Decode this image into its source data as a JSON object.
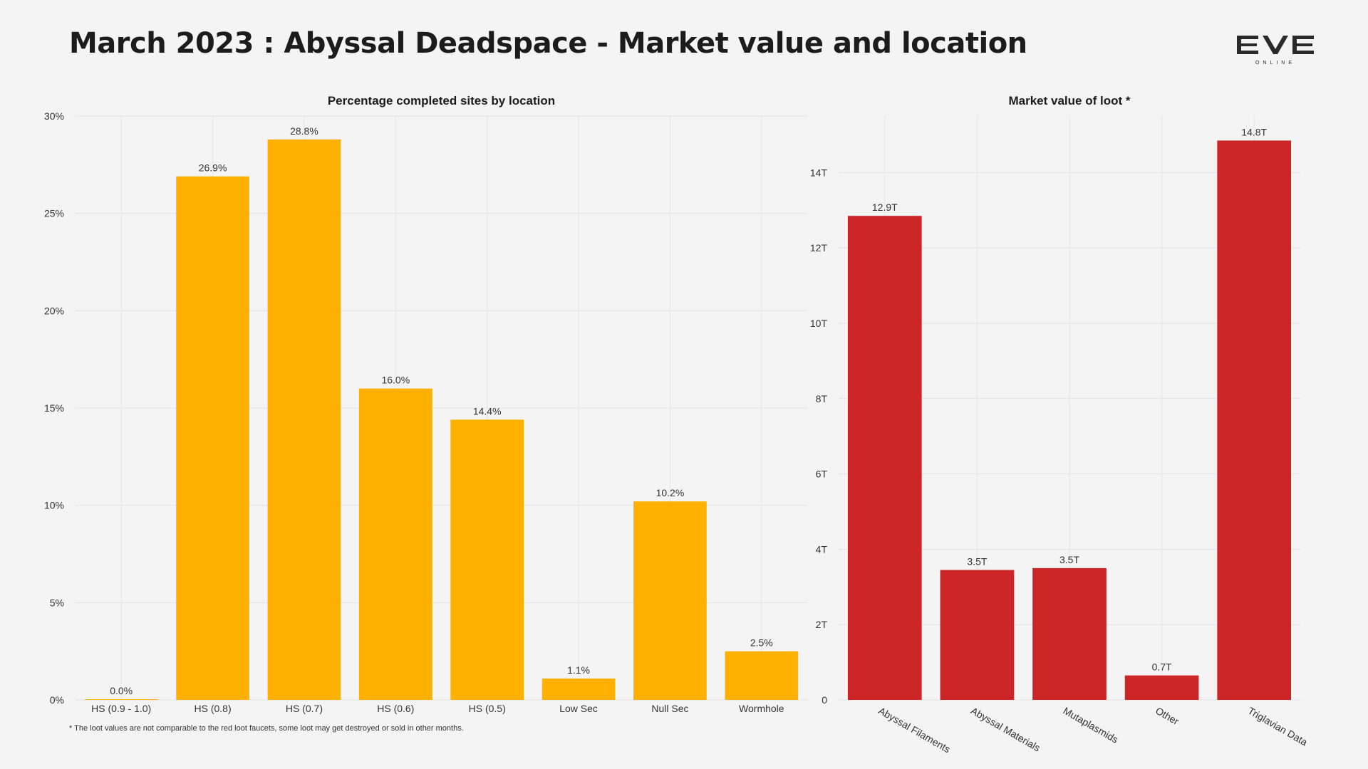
{
  "header": {
    "title": "March 2023 : Abyssal Deadspace - Market value and location",
    "logo_text": "EVE",
    "logo_subtext": "ONLINE"
  },
  "footnote": "* The loot values are not comparable to the red loot faucets, some loot may get destroyed or sold in other months.",
  "chart_data": [
    {
      "type": "bar",
      "title": "Percentage completed sites by location",
      "categories": [
        "HS (0.9 - 1.0)",
        "HS (0.8)",
        "HS (0.7)",
        "HS (0.6)",
        "HS (0.5)",
        "Low Sec",
        "Null Sec",
        "Wormhole"
      ],
      "values": [
        0.0,
        26.9,
        28.8,
        16.0,
        14.4,
        1.1,
        10.2,
        2.5
      ],
      "value_labels": [
        "0.0%",
        "26.9%",
        "28.8%",
        "16.0%",
        "14.4%",
        "1.1%",
        "10.2%",
        "2.5%"
      ],
      "ylim": [
        0,
        30
      ],
      "yticks": [
        0,
        5,
        10,
        15,
        20,
        25,
        30
      ],
      "ytick_labels": [
        "0%",
        "5%",
        "10%",
        "15%",
        "20%",
        "25%",
        "30%"
      ],
      "xlabel": "",
      "ylabel": "",
      "grid": true,
      "color": "#ffb000"
    },
    {
      "type": "bar",
      "title": "Market value of loot *",
      "categories": [
        "Abyssal Filaments",
        "Abyssal Materials",
        "Mutaplasmids",
        "Other",
        "Triglavian Data"
      ],
      "values": [
        12.85,
        3.45,
        3.5,
        0.65,
        14.85
      ],
      "value_labels": [
        "12.9T",
        "3.5T",
        "3.5T",
        "0.7T",
        "14.8T"
      ],
      "ylim": [
        0,
        15.5
      ],
      "yticks": [
        0,
        2,
        4,
        6,
        8,
        10,
        12,
        14
      ],
      "ytick_labels": [
        "0",
        "2T",
        "4T",
        "6T",
        "8T",
        "10T",
        "12T",
        "14T"
      ],
      "xlabel": "",
      "ylabel": "",
      "grid": true,
      "color": "#cc2527"
    }
  ]
}
